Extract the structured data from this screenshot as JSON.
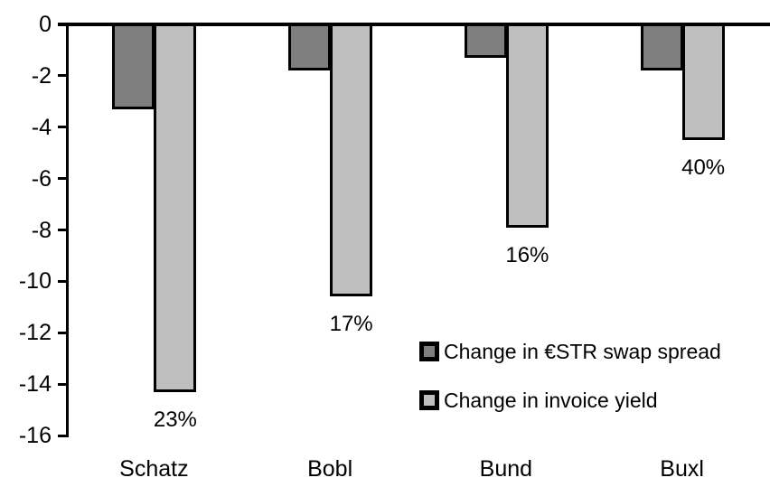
{
  "chart_data": {
    "type": "bar",
    "title": "",
    "xlabel": "",
    "ylabel": "",
    "categories": [
      "Schatz",
      "Bobl",
      "Bund",
      "Buxl"
    ],
    "series": [
      {
        "name": "Change in €STR swap spread",
        "color": "#7f7f7f",
        "values": [
          -3.3,
          -1.8,
          -1.3,
          -1.8
        ]
      },
      {
        "name": "Change in invoice yield",
        "color": "#bfbfbf",
        "values": [
          -14.3,
          -10.6,
          -7.9,
          -4.5
        ]
      }
    ],
    "bar_labels": [
      "23%",
      "17%",
      "16%",
      "40%"
    ],
    "y_ticks": [
      "0",
      "-2",
      "-4",
      "-6",
      "-8",
      "-10",
      "-12",
      "-14",
      "-16"
    ],
    "ylim": [
      -16,
      0
    ],
    "grid": false,
    "legend_position": "center-right",
    "axis_color": "#000000",
    "background_color": "#ffffff",
    "bar_border_color": "#000000"
  }
}
